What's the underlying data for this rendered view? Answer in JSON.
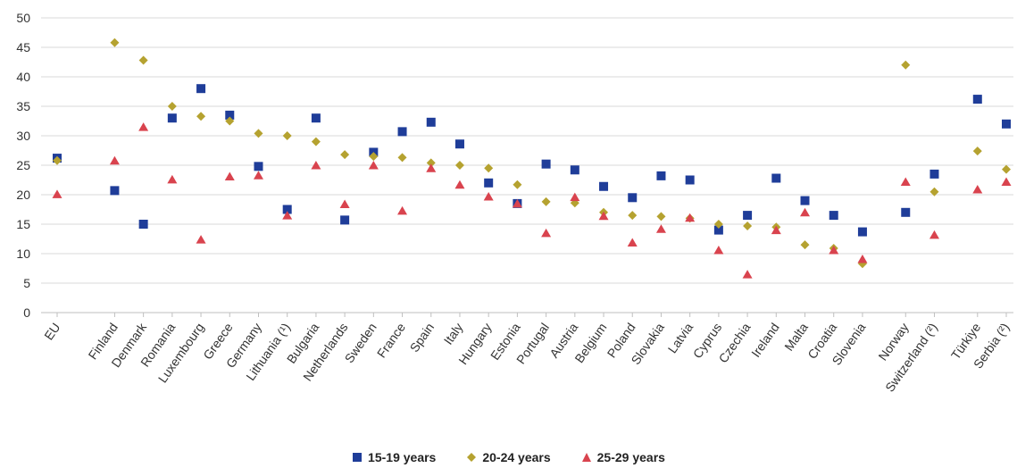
{
  "chart_data": {
    "type": "scatter",
    "categories": [
      "EU",
      "Finland",
      "Denmark",
      "Romania",
      "Luxembourg",
      "Greece",
      "Germany",
      "Lithuania (¹)",
      "Bulgaria",
      "Netherlands",
      "Sweden",
      "France",
      "Spain",
      "Italy",
      "Hungary",
      "Estonia",
      "Portugal",
      "Austria",
      "Belgium",
      "Poland",
      "Slovakia",
      "Latvia",
      "Cyprus",
      "Czechia",
      "Ireland",
      "Malta",
      "Croatia",
      "Slovenia",
      "Norway",
      "Switzerland (²)",
      "Türkiye",
      "Serbia (²)"
    ],
    "ylim": [
      0,
      50
    ],
    "yticks": [
      0,
      5,
      10,
      15,
      20,
      25,
      30,
      35,
      40,
      45,
      50
    ],
    "grid": true,
    "legend_position": "bottom",
    "series": [
      {
        "name": "15-19 years",
        "marker": "square",
        "color": "#1f3d99",
        "values": [
          26.2,
          20.7,
          15.0,
          33.0,
          38.0,
          33.5,
          24.8,
          17.5,
          33.0,
          15.7,
          27.2,
          30.7,
          32.3,
          28.6,
          22.0,
          18.5,
          25.2,
          24.2,
          21.4,
          19.5,
          23.2,
          22.5,
          14.0,
          16.5,
          22.8,
          19.0,
          16.5,
          13.7,
          17.0,
          23.5,
          36.2,
          32.0
        ]
      },
      {
        "name": "20-24 years",
        "marker": "diamond",
        "color": "#b5a230",
        "values": [
          25.8,
          45.8,
          42.8,
          35.0,
          33.3,
          32.5,
          30.4,
          30.0,
          29.0,
          26.8,
          26.5,
          26.3,
          25.4,
          25.0,
          24.5,
          21.7,
          18.8,
          18.6,
          17.0,
          16.5,
          16.3,
          16.0,
          15.0,
          14.7,
          14.5,
          11.5,
          10.9,
          8.3,
          42.0,
          20.5,
          27.4,
          24.3
        ]
      },
      {
        "name": "25-29 years",
        "marker": "triangle",
        "color": "#d9434e",
        "values": [
          20.1,
          25.8,
          31.5,
          22.6,
          12.4,
          23.1,
          23.3,
          16.5,
          25.0,
          18.4,
          25.0,
          17.3,
          24.5,
          21.7,
          19.7,
          18.5,
          13.5,
          19.6,
          16.4,
          11.9,
          14.2,
          16.1,
          10.6,
          6.5,
          14.0,
          17.0,
          10.6,
          9.1,
          22.2,
          13.2,
          20.9,
          22.2
        ]
      }
    ]
  }
}
